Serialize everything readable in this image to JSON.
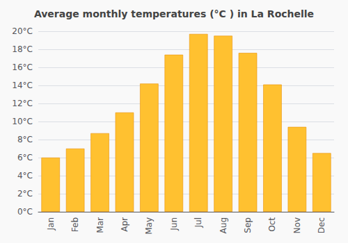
{
  "chart_data": {
    "type": "bar",
    "title": "Average monthly temperatures (°C ) in La Rochelle",
    "categories": [
      "Jan",
      "Feb",
      "Mar",
      "Apr",
      "May",
      "Jun",
      "Jul",
      "Aug",
      "Sep",
      "Oct",
      "Nov",
      "Dec"
    ],
    "values": [
      6.0,
      7.0,
      8.7,
      11.0,
      14.2,
      17.4,
      19.7,
      19.5,
      17.6,
      14.1,
      9.4,
      6.5
    ],
    "color": "#FFC130",
    "ylim": [
      0,
      20
    ],
    "yticks": [
      {
        "value": 0,
        "label": "0°C"
      },
      {
        "value": 2,
        "label": "2°C"
      },
      {
        "value": 4,
        "label": "4°C"
      },
      {
        "value": 6,
        "label": "6°C"
      },
      {
        "value": 8,
        "label": "8°C"
      },
      {
        "value": 10,
        "label": "10°C"
      },
      {
        "value": 12,
        "label": "12°C"
      },
      {
        "value": 14,
        "label": "14°C"
      },
      {
        "value": 16,
        "label": "16°C"
      },
      {
        "value": 18,
        "label": "18°C"
      },
      {
        "value": 20,
        "label": "20°C"
      }
    ],
    "grid": true
  }
}
